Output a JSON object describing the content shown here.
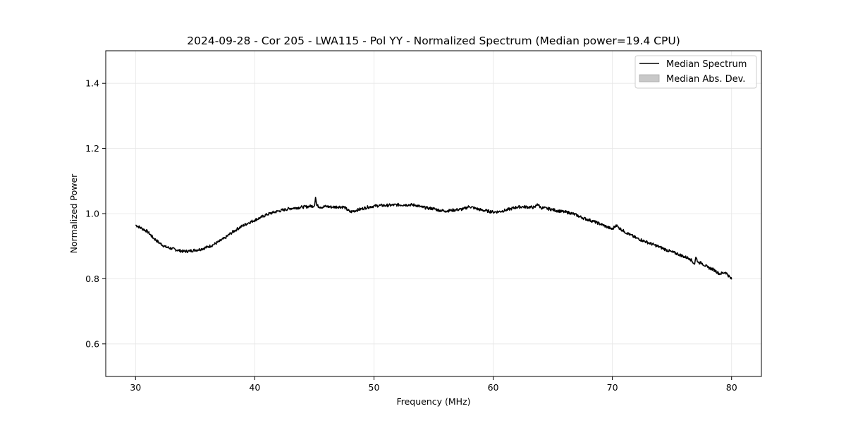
{
  "chart_data": {
    "type": "line",
    "title": "2024-09-28 - Cor 205 - LWA115 - Pol YY - Normalized Spectrum (Median power=19.4 CPU)",
    "xlabel": "Frequency (MHz)",
    "ylabel": "Normalized Power",
    "xlim": [
      27.5,
      82.5
    ],
    "ylim": [
      0.5,
      1.5
    ],
    "x_ticks": [
      30,
      40,
      50,
      60,
      70,
      80
    ],
    "x_tick_labels": [
      "30",
      "40",
      "50",
      "60",
      "70",
      "80"
    ],
    "y_ticks": [
      0.6,
      0.8,
      1.0,
      1.2,
      1.4
    ],
    "y_tick_labels": [
      "0.6",
      "0.8",
      "1.0",
      "1.2",
      "1.4"
    ],
    "grid": true,
    "legend_position": "top-right",
    "legend": [
      "Median Spectrum",
      "Median Abs. Dev."
    ],
    "series": [
      {
        "name": "Median Spectrum",
        "x": [
          30,
          30.5,
          31,
          31.5,
          32,
          32.5,
          33,
          33.5,
          34,
          34.5,
          35,
          35.5,
          36,
          36.5,
          37,
          37.5,
          38,
          38.5,
          39,
          39.5,
          40,
          40.5,
          41,
          41.5,
          42,
          42.5,
          43,
          43.5,
          44,
          44.5,
          45,
          45.1,
          45.2,
          45.5,
          46,
          46.5,
          47,
          47.5,
          48,
          48.5,
          49,
          49.5,
          50,
          50.5,
          51,
          51.5,
          52,
          52.5,
          53,
          53.5,
          54,
          54.5,
          55,
          55.5,
          56,
          56.5,
          57,
          57.5,
          58,
          58.5,
          59,
          59.5,
          60,
          60.5,
          61,
          61.5,
          62,
          62.5,
          63,
          63.5,
          63.7,
          64,
          64.5,
          65,
          65.5,
          66,
          66.5,
          67,
          67.5,
          68,
          68.5,
          69,
          69.5,
          70,
          70.3,
          70.5,
          71,
          71.5,
          72,
          72.5,
          73,
          73.5,
          74,
          74.5,
          75,
          75.5,
          76,
          76.5,
          76.9,
          77,
          77.2,
          77.5,
          78,
          78.5,
          79,
          79.5,
          80
        ],
        "values": [
          0.965,
          0.955,
          0.945,
          0.925,
          0.91,
          0.898,
          0.893,
          0.888,
          0.884,
          0.885,
          0.888,
          0.891,
          0.897,
          0.904,
          0.914,
          0.925,
          0.94,
          0.952,
          0.963,
          0.972,
          0.98,
          0.988,
          0.997,
          1.003,
          1.008,
          1.012,
          1.016,
          1.018,
          1.02,
          1.022,
          1.024,
          1.05,
          1.025,
          1.02,
          1.022,
          1.02,
          1.021,
          1.02,
          1.005,
          1.01,
          1.015,
          1.02,
          1.023,
          1.025,
          1.025,
          1.026,
          1.027,
          1.027,
          1.027,
          1.026,
          1.02,
          1.017,
          1.015,
          1.01,
          1.008,
          1.01,
          1.012,
          1.014,
          1.022,
          1.016,
          1.011,
          1.008,
          1.005,
          1.006,
          1.01,
          1.015,
          1.02,
          1.021,
          1.02,
          1.019,
          1.03,
          1.018,
          1.016,
          1.012,
          1.008,
          1.005,
          1.002,
          0.995,
          0.987,
          0.981,
          0.975,
          0.968,
          0.96,
          0.952,
          0.965,
          0.958,
          0.945,
          0.935,
          0.925,
          0.918,
          0.911,
          0.904,
          0.897,
          0.889,
          0.882,
          0.876,
          0.868,
          0.862,
          0.845,
          0.866,
          0.85,
          0.848,
          0.835,
          0.828,
          0.815,
          0.82,
          0.798
        ]
      },
      {
        "name": "Median Abs. Dev.",
        "values": []
      }
    ]
  },
  "colors": {
    "line": "#000000",
    "mad_fill": "#c8c8c8",
    "grid": "#e6e6e6"
  }
}
